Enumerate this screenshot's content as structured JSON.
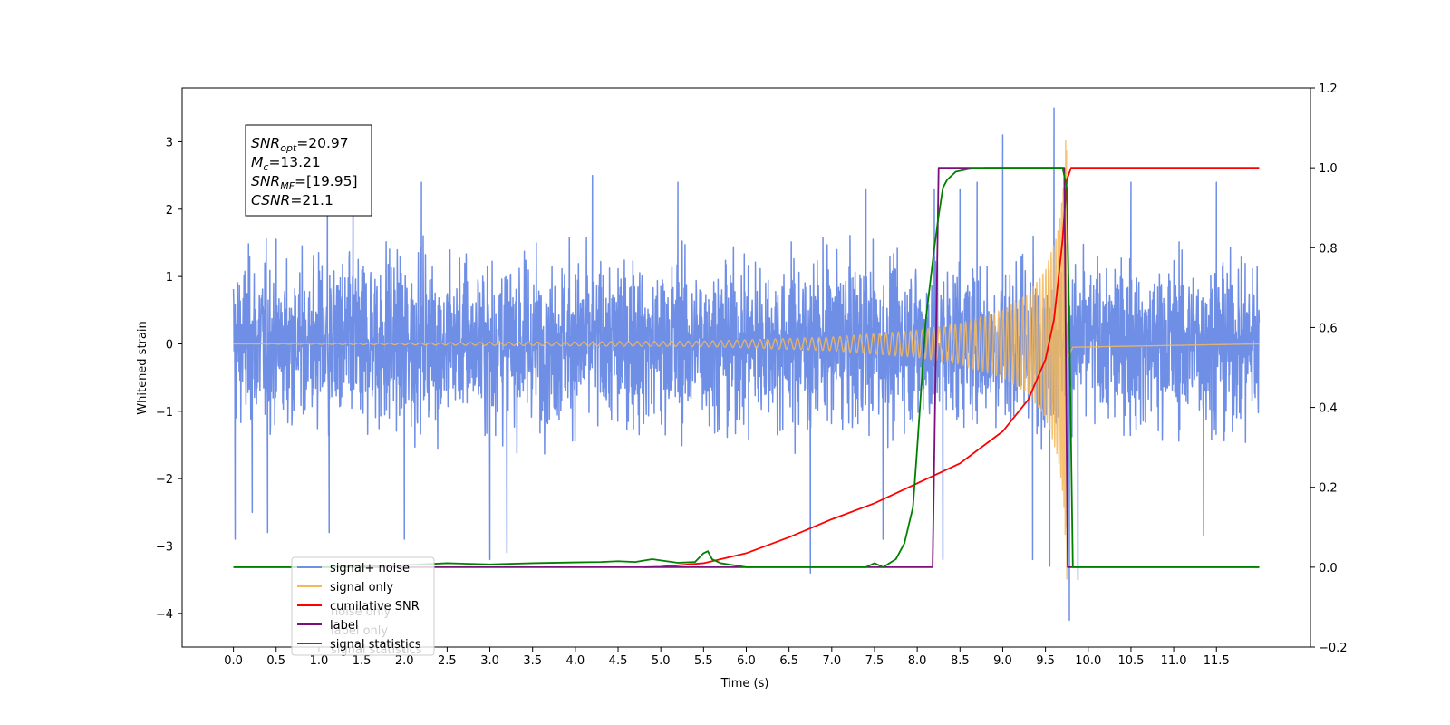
{
  "chart_data": {
    "type": "line",
    "xlabel": "Time (s)",
    "ylabel_left": "Whitened strain",
    "ylabel_right": "",
    "xlim": [
      -0.6,
      12.6
    ],
    "ylim_left": [
      -4.5,
      3.8
    ],
    "ylim_right": [
      -0.2,
      1.2
    ],
    "x_ticks": [
      0.0,
      0.5,
      1.0,
      1.5,
      2.0,
      2.5,
      3.0,
      3.5,
      4.0,
      4.5,
      5.0,
      5.5,
      6.0,
      6.5,
      7.0,
      7.5,
      8.0,
      8.5,
      9.0,
      9.5,
      10.0,
      10.5,
      11.0,
      11.5
    ],
    "x_tick_labels": [
      "0.0",
      "0.5",
      "1.0",
      "1.5",
      "2.0",
      "2.5",
      "3.0",
      "3.5",
      "4.0",
      "4.5",
      "5.0",
      "5.5",
      "6.0",
      "6.5",
      "7.0",
      "7.5",
      "8.0",
      "8.5",
      "9.0",
      "9.5",
      "10.0",
      "10.5",
      "11.0",
      "11.5"
    ],
    "y_left_ticks": [
      3,
      2,
      1,
      0,
      -1,
      -2,
      -3,
      -4
    ],
    "y_left_tick_labels": [
      "3",
      "2",
      "1",
      "0",
      "−1",
      "−2",
      "−3",
      "−4"
    ],
    "y_right_ticks": [
      1.2,
      1.0,
      0.8,
      0.6,
      0.4,
      0.2,
      0.0,
      -0.2
    ],
    "y_right_tick_labels": [
      "1.2",
      "1.0",
      "0.8",
      "0.6",
      "0.4",
      "0.2",
      "0.0",
      "−0.2"
    ],
    "grid": false,
    "legend_position": "lower-left",
    "annotation": [
      {
        "sym": "SNR",
        "sub": "opt",
        "val": "=20.97"
      },
      {
        "sym": "M",
        "sub": "c",
        "val": "=13.21"
      },
      {
        "sym": "SNR",
        "sub": "MF",
        "val": "=[19.95]"
      },
      {
        "sym": "CSNR",
        "sub": "",
        "val": "=21.1"
      }
    ],
    "series": [
      {
        "name": "signal+ noise",
        "axis": "left",
        "color": "#6f8ee6",
        "kind": "noisy-strain",
        "x_range": [
          0.0,
          12.0
        ],
        "typical_band": [
          -1.5,
          1.6
        ],
        "extreme_spikes": [
          {
            "x": 0.02,
            "y": -2.9
          },
          {
            "x": 0.22,
            "y": -2.5
          },
          {
            "x": 0.4,
            "y": -2.8
          },
          {
            "x": 1.1,
            "y": 2.4
          },
          {
            "x": 1.12,
            "y": -2.8
          },
          {
            "x": 1.4,
            "y": 2.8
          },
          {
            "x": 2.0,
            "y": -2.9
          },
          {
            "x": 2.2,
            "y": 2.4
          },
          {
            "x": 3.0,
            "y": -3.2
          },
          {
            "x": 3.2,
            "y": -3.1
          },
          {
            "x": 4.2,
            "y": 2.5
          },
          {
            "x": 5.2,
            "y": 2.4
          },
          {
            "x": 6.75,
            "y": -3.4
          },
          {
            "x": 7.4,
            "y": 2.3
          },
          {
            "x": 7.6,
            "y": -2.9
          },
          {
            "x": 8.2,
            "y": 2.3
          },
          {
            "x": 8.3,
            "y": -3.2
          },
          {
            "x": 8.5,
            "y": 2.3
          },
          {
            "x": 8.7,
            "y": 2.4
          },
          {
            "x": 9.0,
            "y": 3.1
          },
          {
            "x": 9.35,
            "y": -3.2
          },
          {
            "x": 9.55,
            "y": -3.3
          },
          {
            "x": 9.6,
            "y": 3.5
          },
          {
            "x": 9.72,
            "y": 2.5
          },
          {
            "x": 9.78,
            "y": -4.1
          },
          {
            "x": 9.88,
            "y": -3.5
          },
          {
            "x": 10.5,
            "y": 2.4
          },
          {
            "x": 11.35,
            "y": -2.85
          },
          {
            "x": 11.5,
            "y": 2.4
          }
        ]
      },
      {
        "name": "signal only",
        "axis": "left",
        "color": "#f5b85a",
        "kind": "chirp",
        "merger_time": 9.75,
        "envelope": [
          [
            0.0,
            0.0
          ],
          [
            5.5,
            0.04
          ],
          [
            7.0,
            0.1
          ],
          [
            8.0,
            0.2
          ],
          [
            8.5,
            0.3
          ],
          [
            9.0,
            0.5
          ],
          [
            9.3,
            0.75
          ],
          [
            9.5,
            1.1
          ],
          [
            9.65,
            1.7
          ],
          [
            9.72,
            2.5
          ],
          [
            9.75,
            3.5
          ],
          [
            9.76,
            0.2
          ],
          [
            9.82,
            0.05
          ],
          [
            12.0,
            0.0
          ]
        ]
      },
      {
        "name": "cumilative SNR",
        "axis": "right",
        "color": "#ff0000",
        "x": [
          4.8,
          5.0,
          5.5,
          6.0,
          6.5,
          7.0,
          7.5,
          8.0,
          8.5,
          9.0,
          9.3,
          9.5,
          9.6,
          9.7,
          9.75,
          9.8,
          10.0,
          11.0,
          12.0
        ],
        "values": [
          0.0,
          0.001,
          0.01,
          0.035,
          0.075,
          0.12,
          0.16,
          0.21,
          0.26,
          0.34,
          0.42,
          0.52,
          0.62,
          0.82,
          0.97,
          1.0,
          1.0,
          1.0,
          1.0
        ]
      },
      {
        "name": "label",
        "axis": "right",
        "color": "#7b0f7b",
        "x": [
          0.0,
          8.18,
          8.25,
          9.72,
          9.76,
          12.0
        ],
        "values": [
          0.0,
          0.0,
          1.0,
          1.0,
          0.0,
          0.0
        ]
      },
      {
        "name": "signal statistics",
        "axis": "right",
        "color": "#008000",
        "x": [
          0.0,
          1.0,
          2.0,
          2.5,
          3.0,
          3.5,
          4.0,
          4.3,
          4.5,
          4.7,
          4.9,
          5.0,
          5.2,
          5.4,
          5.5,
          5.55,
          5.6,
          5.7,
          6.0,
          6.5,
          7.0,
          7.4,
          7.5,
          7.6,
          7.75,
          7.85,
          7.95,
          8.0,
          8.1,
          8.2,
          8.25,
          8.3,
          8.35,
          8.45,
          8.6,
          8.8,
          9.0,
          9.5,
          9.7,
          9.75,
          9.78,
          9.82,
          10.0,
          12.0
        ],
        "values": [
          0.0,
          0.0,
          0.005,
          0.01,
          0.007,
          0.01,
          0.012,
          0.013,
          0.015,
          0.013,
          0.02,
          0.017,
          0.011,
          0.013,
          0.035,
          0.04,
          0.02,
          0.01,
          0.0,
          0.0,
          0.0,
          0.0,
          0.01,
          0.0,
          0.02,
          0.06,
          0.15,
          0.3,
          0.62,
          0.8,
          0.88,
          0.95,
          0.97,
          0.99,
          0.997,
          1.0,
          1.0,
          1.0,
          1.0,
          0.95,
          0.6,
          0.0,
          0.0,
          0.0
        ]
      }
    ]
  },
  "legend": {
    "items": [
      {
        "label": "signal+ noise",
        "color": "#6f8ee6"
      },
      {
        "label": "signal only",
        "color": "#f5b85a"
      },
      {
        "label": "cumilative SNR",
        "color": "#ff0000"
      },
      {
        "label": "label",
        "color": "#7b0f7b"
      },
      {
        "label": "signal statistics",
        "color": "#008000"
      }
    ],
    "shadow_text": [
      {
        "text": "noise only",
        "row": 2
      },
      {
        "text": "label only",
        "row": 3
      },
      {
        "text": "signal statistics",
        "row": 4
      }
    ]
  }
}
